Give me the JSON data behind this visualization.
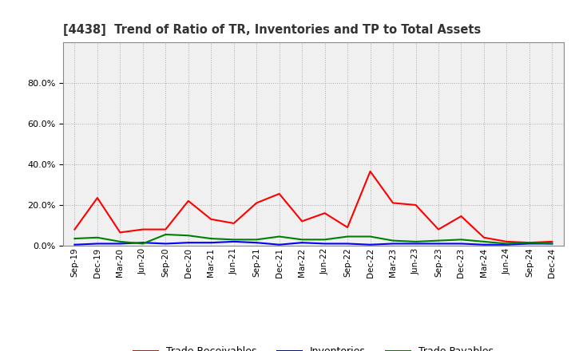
{
  "title": "[4438]  Trend of Ratio of TR, Inventories and TP to Total Assets",
  "x_labels": [
    "Sep-19",
    "Dec-19",
    "Mar-20",
    "Jun-20",
    "Sep-20",
    "Dec-20",
    "Mar-21",
    "Jun-21",
    "Sep-21",
    "Dec-21",
    "Mar-22",
    "Jun-22",
    "Sep-22",
    "Dec-22",
    "Mar-23",
    "Jun-23",
    "Sep-23",
    "Dec-23",
    "Mar-24",
    "Jun-24",
    "Sep-24",
    "Dec-24"
  ],
  "trade_receivables": [
    0.08,
    0.235,
    0.065,
    0.08,
    0.08,
    0.22,
    0.13,
    0.11,
    0.21,
    0.255,
    0.12,
    0.16,
    0.09,
    0.365,
    0.21,
    0.2,
    0.08,
    0.145,
    0.04,
    0.02,
    0.015,
    0.02
  ],
  "inventories": [
    0.005,
    0.01,
    0.01,
    0.015,
    0.01,
    0.015,
    0.015,
    0.02,
    0.015,
    0.005,
    0.015,
    0.01,
    0.01,
    0.005,
    0.01,
    0.01,
    0.01,
    0.01,
    0.005,
    0.005,
    0.01,
    0.01
  ],
  "trade_payables": [
    0.035,
    0.04,
    0.02,
    0.01,
    0.055,
    0.05,
    0.035,
    0.03,
    0.03,
    0.045,
    0.03,
    0.03,
    0.045,
    0.045,
    0.025,
    0.02,
    0.025,
    0.03,
    0.02,
    0.01,
    0.015,
    0.01
  ],
  "colors": {
    "trade_receivables": "#ff0000",
    "inventories": "#0000ff",
    "trade_payables": "#008000"
  },
  "ylim": [
    0.0,
    1.0
  ],
  "yticks": [
    0.0,
    0.2,
    0.4,
    0.6,
    0.8
  ],
  "background_color": "#ffffff",
  "plot_bg_color": "#f0f0f0",
  "grid_color": "#aaaaaa",
  "title_color": "#333333",
  "legend_labels": [
    "Trade Receivables",
    "Inventories",
    "Trade Payables"
  ]
}
